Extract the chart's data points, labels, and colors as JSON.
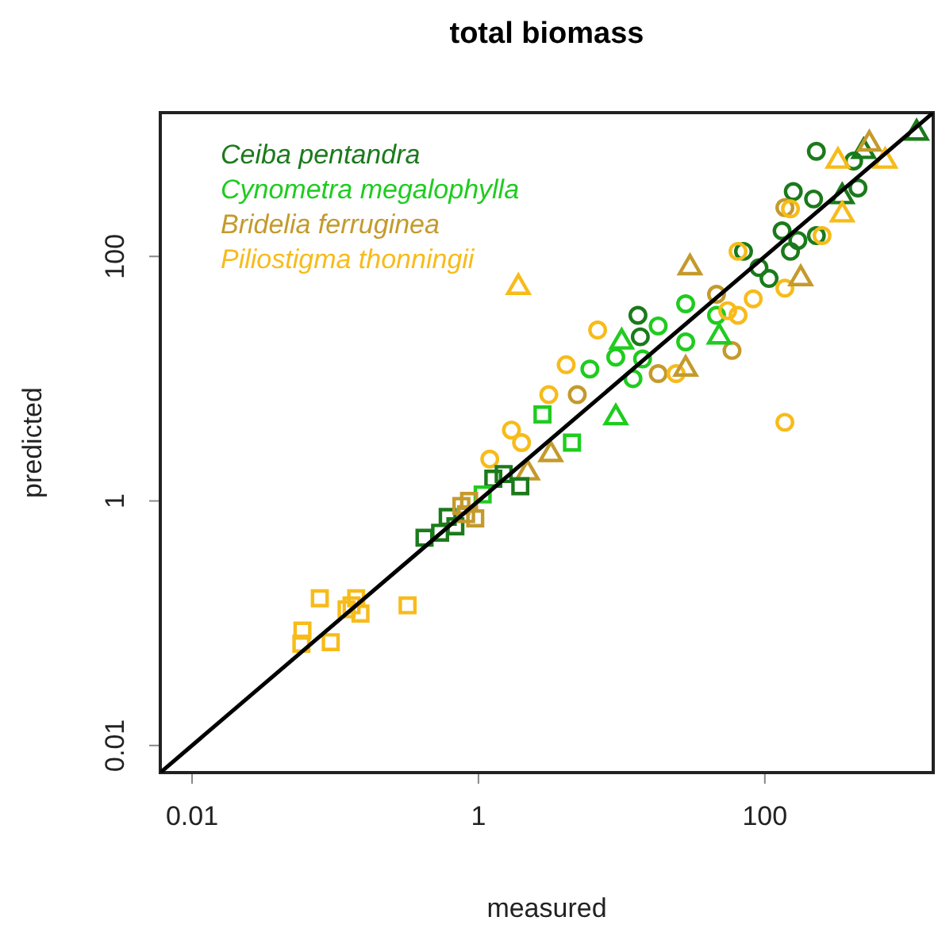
{
  "chart_data": {
    "type": "scatter",
    "title": "total biomass",
    "xlabel": "measured",
    "ylabel": "predicted",
    "log": "xy",
    "xlim": [
      0.006,
      1500
    ],
    "ylim": [
      0.006,
      1500
    ],
    "xticks": [
      0.01,
      1,
      100
    ],
    "yticks": [
      0.01,
      1,
      100
    ],
    "grid": false,
    "legend": "top left",
    "series": [
      {
        "name": "Ceiba pentandra",
        "color": "#1b7a1b",
        "marker": "circle",
        "x": [
          158,
          219,
          132,
          170,
          229,
          71,
          91,
          107,
          151,
          13,
          13.5,
          229,
          417,
          447
        ],
        "values": [
          339,
          295,
          162,
          135,
          148,
          110,
          81,
          66,
          110,
          33,
          22,
          724,
          603,
          363
        ]
      },
      {
        "name": "Cynometra megalophylla",
        "color": "#1fcc1f",
        "marker": "circle",
        "x": [
          18,
          28,
          9.1,
          46,
          28,
          6.0,
          12,
          14
        ],
        "values": [
          27,
          20,
          15,
          33,
          41,
          12,
          10,
          14.5
        ]
      },
      {
        "name": "Bridelia ferruginea",
        "color": "#c49a2c",
        "marker": "circle",
        "x": [
          59,
          138,
          46,
          18,
          4.9
        ],
        "values": [
          17,
          251,
          49,
          11,
          7.4
        ]
      },
      {
        "name": "Piliostigma thonningii",
        "color": "#f7bb1a",
        "marker": "circle",
        "x": [
          6.8,
          138,
          83,
          3.1,
          151,
          251,
          55,
          65,
          4.1,
          1.2,
          1.7,
          2.0,
          138,
          24,
          65
        ],
        "values": [
          25,
          55,
          45,
          7.4,
          245,
          148,
          36,
          110,
          13,
          2.2,
          3.8,
          3.0,
          4.4,
          11,
          33
        ]
      },
      {
        "color": "#1b7a1b",
        "marker": "triangle",
        "x": [
          1148,
          490,
          347
        ],
        "values": [
          1023,
          724,
          309
        ]
      },
      {
        "color": "#1fcc1f",
        "marker": "triangle",
        "x": [
          48,
          10,
          9.1
        ],
        "values": [
          22,
          20,
          4.8
        ]
      },
      {
        "color": "#c49a2c",
        "marker": "triangle",
        "x": [
          537,
          178,
          30,
          28,
          3.2,
          2.2
        ],
        "values": [
          832,
          66,
          81,
          12,
          2.4,
          1.7
        ]
      },
      {
        "color": "#f7bb1a",
        "marker": "triangle",
        "x": [
          1.9,
          324,
          692,
          347
        ],
        "values": [
          56,
          603,
          603,
          219
        ]
      },
      {
        "color": "#1b7a1b",
        "marker": "square",
        "x": [
          0.42,
          0.54,
          0.61,
          0.69,
          1.27,
          1.5,
          1.96
        ],
        "values": [
          0.5,
          0.55,
          0.74,
          0.62,
          1.52,
          1.66,
          1.32
        ]
      },
      {
        "color": "#1fcc1f",
        "marker": "square",
        "x": [
          1.07,
          2.8,
          4.5
        ],
        "values": [
          1.13,
          5.1,
          3.0
        ]
      },
      {
        "color": "#c49a2c",
        "marker": "square",
        "x": [
          0.76,
          0.82,
          0.86,
          0.95
        ],
        "values": [
          0.91,
          0.78,
          1.0,
          0.72
        ]
      },
      {
        "color": "#f7bb1a",
        "marker": "square",
        "x": [
          0.058,
          0.059,
          0.078,
          0.093,
          0.12,
          0.13,
          0.14,
          0.15,
          0.32
        ],
        "values": [
          0.068,
          0.087,
          0.16,
          0.07,
          0.13,
          0.14,
          0.16,
          0.12,
          0.14
        ]
      },
      {
        "type": "line",
        "color": "#000000",
        "line_style": "solid",
        "x": [
          0.006,
          1500
        ],
        "values": [
          0.006,
          1500
        ]
      }
    ]
  }
}
